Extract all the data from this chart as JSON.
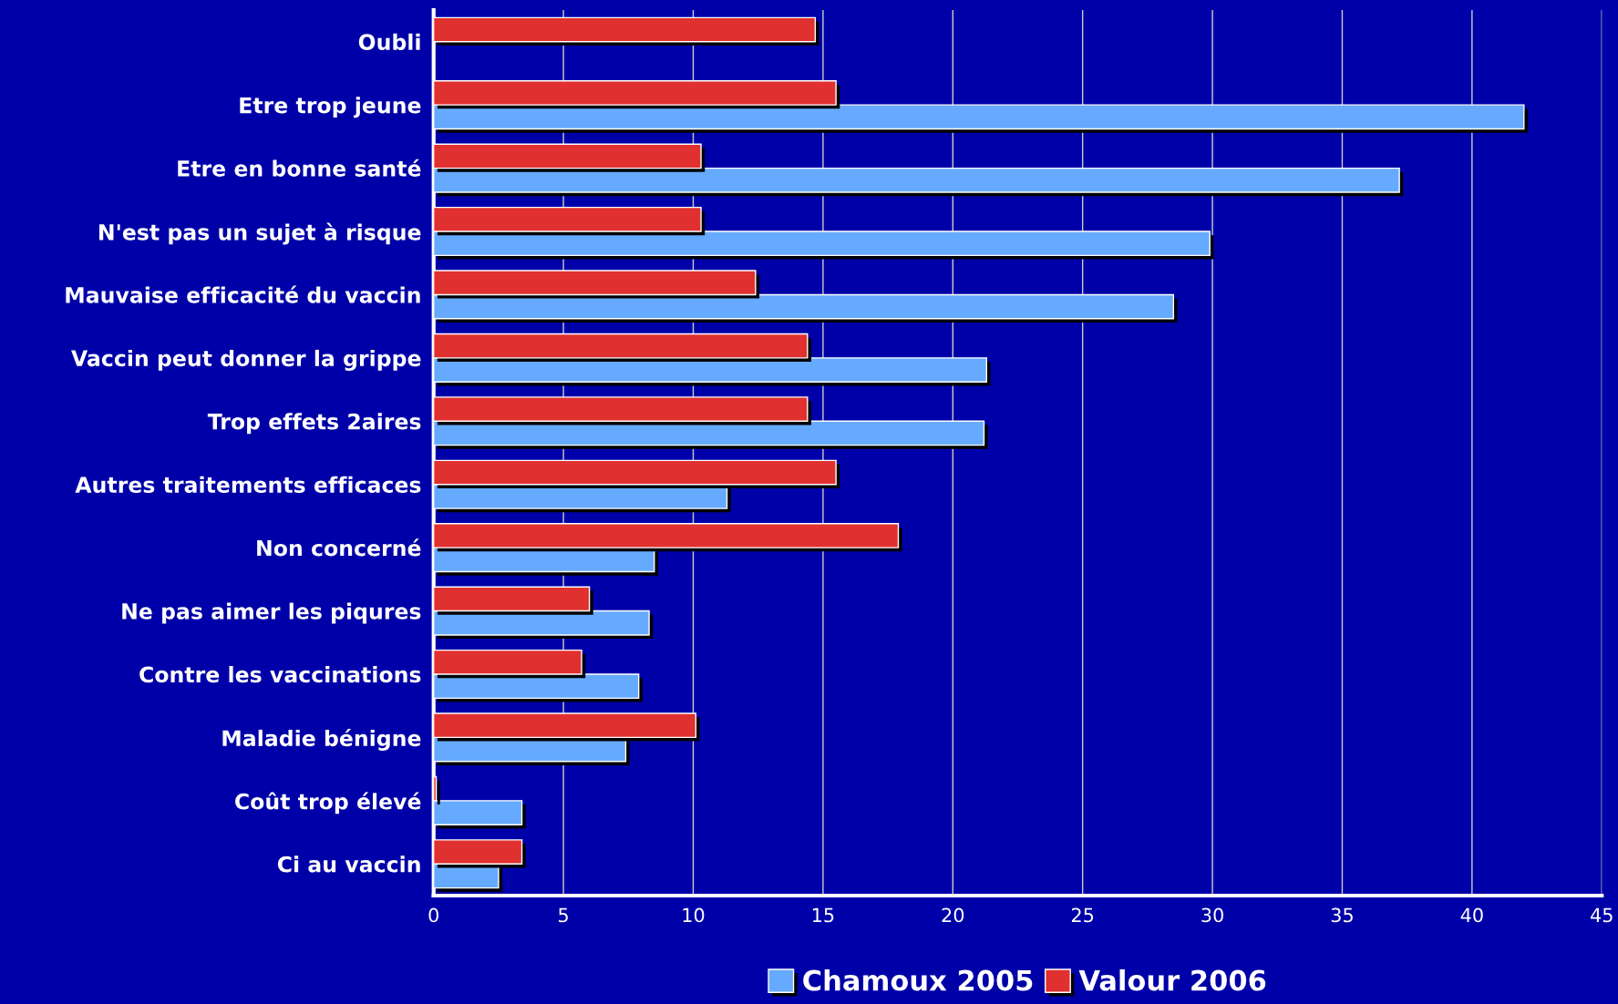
{
  "chart_data": {
    "type": "bar",
    "orientation": "horizontal",
    "categories": [
      "Oubli",
      "Etre trop jeune",
      "Etre en bonne santé",
      "N'est pas un sujet à risque",
      "Mauvaise efficacité du vaccin",
      "Vaccin peut donner la grippe",
      "Trop effets 2aires",
      "Autres traitements efficaces",
      "Non concerné",
      "Ne pas aimer les piqures",
      "Contre les vaccinations",
      "Maladie bénigne",
      "Coût trop élevé",
      "Ci au vaccin"
    ],
    "series": [
      {
        "name": "Chamoux 2005",
        "color": "#66aaff",
        "values": [
          null,
          42.0,
          37.2,
          29.9,
          28.5,
          21.3,
          21.2,
          11.3,
          8.5,
          8.3,
          7.9,
          7.4,
          3.4,
          2.5
        ]
      },
      {
        "name": "Valour 2006",
        "color": "#e03030",
        "values": [
          14.7,
          15.5,
          10.3,
          10.3,
          12.4,
          14.4,
          14.4,
          15.5,
          17.9,
          6.0,
          5.7,
          10.1,
          0.1,
          3.4
        ]
      }
    ],
    "xlim": [
      0,
      45
    ],
    "xticks": [
      0,
      5,
      10,
      15,
      20,
      25,
      30,
      35,
      40,
      45
    ],
    "grid": "x",
    "legend": "bottom"
  }
}
